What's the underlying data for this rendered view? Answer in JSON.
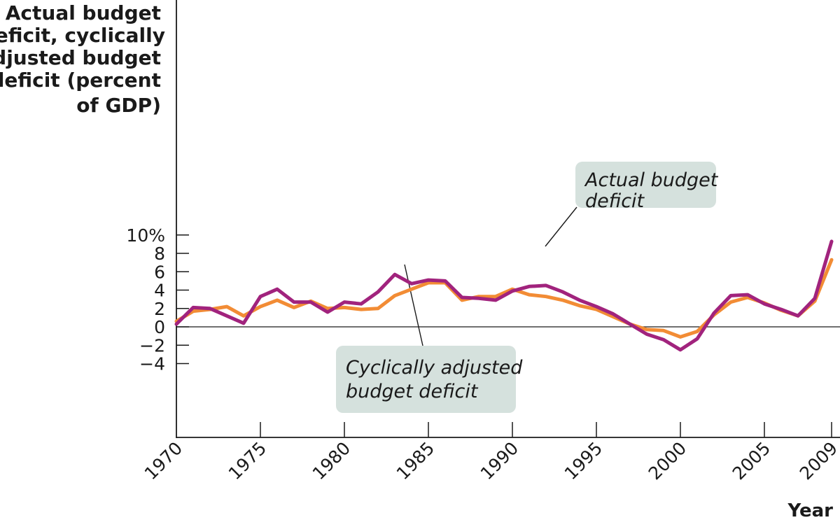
{
  "chart_data": {
    "type": "line",
    "ylabel_lines": [
      "Actual budget",
      "deficit, cyclically",
      "adjusted budget",
      "deficit (percent",
      "of GDP)"
    ],
    "xlabel": "Year",
    "xlim": [
      1970,
      2009
    ],
    "ylim": [
      -6,
      10
    ],
    "x_ticks": [
      1970,
      1975,
      1980,
      1985,
      1990,
      1995,
      2000,
      2005,
      2009
    ],
    "x_tick_labels": [
      "1970",
      "1975",
      "1980",
      "1985",
      "1990",
      "1995",
      "2000",
      "2005",
      "2009"
    ],
    "y_ticks": [
      10,
      8,
      6,
      4,
      2,
      0,
      -2,
      -4
    ],
    "y_tick_labels": [
      "10%",
      "8",
      "6",
      "4",
      "2",
      "0",
      "−2",
      "−4"
    ],
    "x": [
      1970,
      1971,
      1972,
      1973,
      1974,
      1975,
      1976,
      1977,
      1978,
      1979,
      1980,
      1981,
      1982,
      1983,
      1984,
      1985,
      1986,
      1987,
      1988,
      1989,
      1990,
      1991,
      1992,
      1993,
      1994,
      1995,
      1996,
      1997,
      1998,
      1999,
      2000,
      2001,
      2002,
      2003,
      2004,
      2005,
      2006,
      2007,
      2008,
      2009
    ],
    "series": [
      {
        "name": "Cyclically adjusted budget deficit",
        "color": "#f28c35",
        "values": [
          0.6,
          1.7,
          1.9,
          2.2,
          1.2,
          2.2,
          2.9,
          2.1,
          2.8,
          2.0,
          2.1,
          1.9,
          2.0,
          3.4,
          4.1,
          4.8,
          4.8,
          2.9,
          3.3,
          3.3,
          4.1,
          3.5,
          3.3,
          2.9,
          2.3,
          1.9,
          1.1,
          0.3,
          -0.3,
          -0.4,
          -1.1,
          -0.5,
          1.3,
          2.7,
          3.2,
          2.6,
          1.8,
          1.2,
          2.8,
          7.3
        ]
      },
      {
        "name": "Actual budget deficit",
        "color": "#a1237d",
        "values": [
          0.3,
          2.1,
          2.0,
          1.2,
          0.4,
          3.3,
          4.1,
          2.7,
          2.7,
          1.6,
          2.7,
          2.5,
          3.8,
          5.7,
          4.7,
          5.1,
          5.0,
          3.2,
          3.1,
          2.9,
          3.9,
          4.4,
          4.5,
          3.8,
          2.9,
          2.2,
          1.4,
          0.3,
          -0.8,
          -1.4,
          -2.5,
          -1.3,
          1.5,
          3.4,
          3.5,
          2.5,
          1.9,
          1.2,
          3.1,
          9.3
        ]
      }
    ],
    "annotations": [
      {
        "lines": [
          "Actual budget",
          "deficit"
        ],
        "points_to": "Actual budget deficit"
      },
      {
        "lines": [
          "Cyclically adjusted",
          "budget deficit"
        ],
        "points_to": "Cyclically adjusted budget deficit"
      }
    ],
    "annotation_box_color": "#d5e1dd",
    "grid": false
  }
}
